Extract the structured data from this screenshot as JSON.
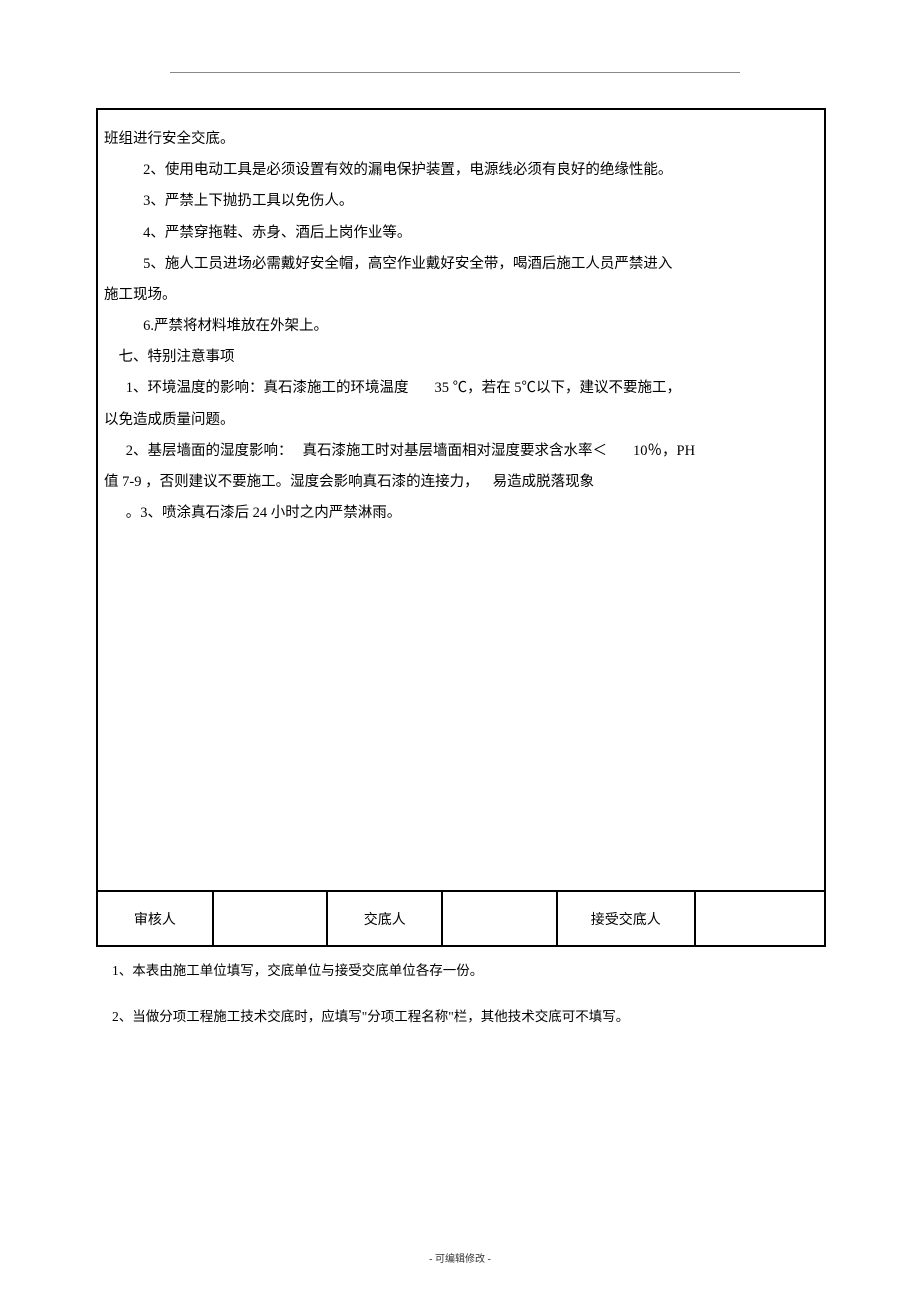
{
  "main": {
    "line_continuation": "班组进行安全交底。",
    "p2": "2、使用电动工具是必须设置有效的漏电保护装置，电源线必须有良好的绝缘性能。",
    "p3": "3、严禁上下抛扔工具以免伤人。",
    "p4": "4、严禁穿拖鞋、赤身、酒后上岗作业等。",
    "p5a": "5、施人工员进场必需戴好安全帽，高空作业戴好安全带，喝酒后施工人员严禁进入",
    "p5b": "施工现场。",
    "p6": "6.严禁将材料堆放在外架上。",
    "section7": "七、特别注意事项",
    "s7_p1a": "1、环境温度的影响：真石漆施工的环境温度",
    "s7_p1b": "35 ℃，若在 5℃以下，建议不要施工，",
    "s7_p1c": "以免造成质量问题。",
    "s7_p2a": "2、基层墙面的湿度影响：",
    "s7_p2b": "真石漆施工时对基层墙面相对湿度要求含水率＜",
    "s7_p2c": "10％，PH",
    "s7_p2d": "值 7-9 ，否则建议不要施工。湿度会影响真石漆的连接力，",
    "s7_p2e": "易造成脱落现象",
    "s7_p3": "。3、喷涂真石漆后 24 小时之内严禁淋雨。"
  },
  "signature": {
    "col1": "审核人",
    "col3": "交底人",
    "col5": "接受交底人"
  },
  "footnotes": {
    "n1": "1、本表由施工单位填写，交底单位与接受交底单位各存一份。",
    "n2": "2、当做分项工程施工技术交底时，应填写\"分项工程名称\"栏，其他技术交底可不填写。"
  },
  "footer": "- 可编辑修改 -",
  "layout": {
    "sig_widths": [
      "15.8%",
      "15.8%",
      "15.8%",
      "15.8%",
      "19%",
      "17.8%"
    ],
    "gap_35": 26,
    "gap_hum": 10,
    "gap_10": 26,
    "gap_falloff": 14
  }
}
